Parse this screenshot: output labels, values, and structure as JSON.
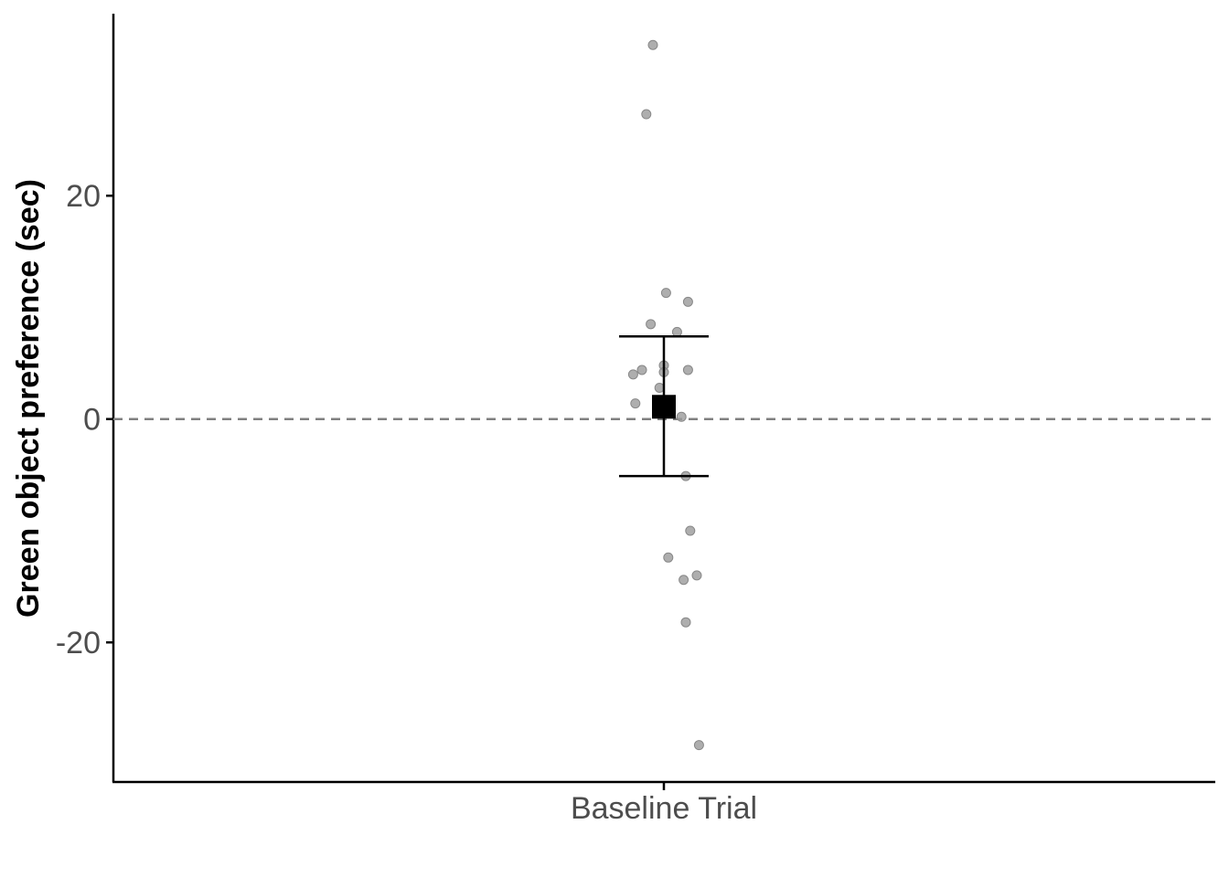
{
  "chart_data": {
    "type": "scatter",
    "title": "",
    "xlabel": "",
    "ylabel": "Green object preference (sec)",
    "categories": [
      "Baseline Trial"
    ],
    "ylim": [
      -32.5,
      36.3
    ],
    "yticks": [
      -20,
      0,
      20
    ],
    "ytick_labels": [
      "-20",
      "0",
      "20"
    ],
    "reference_line": {
      "y": 0,
      "style": "dashed",
      "color": "#808080"
    },
    "points": [
      {
        "x_offset": -0.05,
        "y": 33.5
      },
      {
        "x_offset": -0.08,
        "y": 27.3
      },
      {
        "x_offset": 0.01,
        "y": 11.3
      },
      {
        "x_offset": 0.11,
        "y": 10.5
      },
      {
        "x_offset": -0.06,
        "y": 8.5
      },
      {
        "x_offset": 0.06,
        "y": 7.8
      },
      {
        "x_offset": 0.0,
        "y": 4.8
      },
      {
        "x_offset": -0.1,
        "y": 4.4
      },
      {
        "x_offset": 0.11,
        "y": 4.4
      },
      {
        "x_offset": 0.0,
        "y": 4.2
      },
      {
        "x_offset": -0.14,
        "y": 4.0
      },
      {
        "x_offset": -0.02,
        "y": 2.8
      },
      {
        "x_offset": -0.13,
        "y": 1.4
      },
      {
        "x_offset": 0.08,
        "y": 0.2
      },
      {
        "x_offset": 0.1,
        "y": -5.1
      },
      {
        "x_offset": 0.12,
        "y": -10.0
      },
      {
        "x_offset": 0.02,
        "y": -12.4
      },
      {
        "x_offset": 0.15,
        "y": -14.0
      },
      {
        "x_offset": 0.09,
        "y": -14.4
      },
      {
        "x_offset": 0.1,
        "y": -18.2
      },
      {
        "x_offset": 0.16,
        "y": -29.2
      }
    ],
    "summary": {
      "mean": 1.1,
      "error_low": -5.1,
      "error_high": 7.4
    },
    "grid": false,
    "legend": "none",
    "colors": {
      "points": "#9a9a9a",
      "summary": "#000000",
      "axis": "#000000",
      "tick_text": "#4d4d4d"
    }
  }
}
